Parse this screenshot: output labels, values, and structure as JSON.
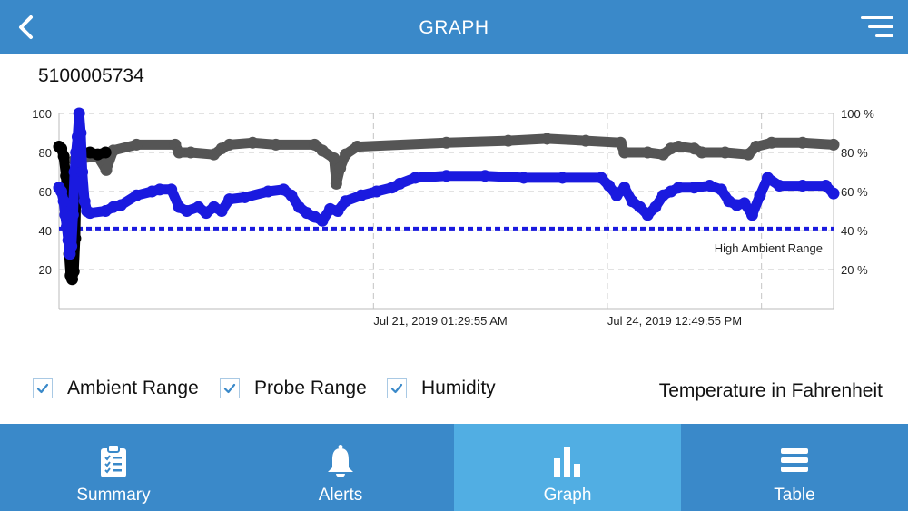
{
  "header": {
    "title": "GRAPH",
    "back_icon": "chevron-left-icon",
    "menu_icon": "menu-icon"
  },
  "device": {
    "id": "5100005734"
  },
  "chart_data": {
    "type": "line",
    "ylim": [
      0,
      100
    ],
    "y_ticks_left": [
      "100",
      "80",
      "60",
      "40",
      "20"
    ],
    "y_ticks_right": [
      "100 %",
      "80 %",
      "60 %",
      "40 %",
      "20 %"
    ],
    "x_ticks": [
      "Jul 21, 2019 01:29:55 AM",
      "Jul 24, 2019 12:49:55 PM"
    ],
    "grid": "dashed",
    "threshold": {
      "label": "High Ambient Range",
      "value": 41,
      "color": "#1a1adf"
    },
    "series": [
      {
        "color": "#000000",
        "points": [
          [
            0.0,
            83
          ],
          [
            0.3,
            82
          ],
          [
            0.6,
            78
          ],
          [
            0.9,
            68
          ],
          [
            1.1,
            45
          ],
          [
            1.3,
            28
          ],
          [
            1.5,
            17
          ],
          [
            1.7,
            15
          ],
          [
            1.9,
            19
          ],
          [
            2.1,
            36
          ],
          [
            2.2,
            60
          ],
          [
            2.4,
            70
          ],
          [
            2.6,
            79
          ],
          [
            3.0,
            80
          ],
          [
            4.0,
            80
          ],
          [
            5.0,
            79
          ],
          [
            6.0,
            80
          ]
        ]
      },
      {
        "color": "#555555",
        "points": [
          [
            2.0,
            76
          ],
          [
            3.0,
            77
          ],
          [
            5.0,
            78
          ],
          [
            6.1,
            71
          ],
          [
            7.0,
            81
          ],
          [
            10.0,
            84
          ],
          [
            15.0,
            84
          ],
          [
            15.5,
            80
          ],
          [
            17.0,
            80
          ],
          [
            20.0,
            79
          ],
          [
            21.0,
            82
          ],
          [
            22.0,
            84
          ],
          [
            25.0,
            85
          ],
          [
            28.0,
            84
          ],
          [
            33.0,
            84
          ],
          [
            34.0,
            81
          ],
          [
            35.5,
            77
          ],
          [
            35.8,
            64
          ],
          [
            36.3,
            72
          ],
          [
            37.0,
            79
          ],
          [
            38.5,
            83
          ],
          [
            50.0,
            85
          ],
          [
            58.0,
            86
          ],
          [
            63.0,
            87
          ],
          [
            68.0,
            86
          ],
          [
            72.5,
            85
          ],
          [
            73.0,
            80
          ],
          [
            76.0,
            80
          ],
          [
            78.0,
            79
          ],
          [
            79.0,
            82
          ],
          [
            80.0,
            83
          ],
          [
            82.0,
            82
          ],
          [
            83.0,
            80
          ],
          [
            86.0,
            80
          ],
          [
            89.0,
            79
          ],
          [
            90.0,
            83
          ],
          [
            92.0,
            85
          ],
          [
            96.0,
            85
          ],
          [
            100.0,
            84
          ]
        ]
      },
      {
        "color": "#1a1adf",
        "points": [
          [
            0.0,
            62
          ],
          [
            0.3,
            60
          ],
          [
            0.6,
            55
          ],
          [
            0.8,
            48
          ],
          [
            1.0,
            42
          ],
          [
            1.2,
            35
          ],
          [
            1.4,
            28
          ],
          [
            1.6,
            32
          ],
          [
            1.8,
            48
          ],
          [
            2.0,
            70
          ],
          [
            2.2,
            80
          ],
          [
            2.4,
            88
          ],
          [
            2.6,
            100
          ],
          [
            2.8,
            90
          ],
          [
            3.0,
            70
          ],
          [
            3.3,
            55
          ],
          [
            3.6,
            50
          ],
          [
            4.0,
            49
          ],
          [
            6.0,
            50
          ],
          [
            7.0,
            52
          ],
          [
            8.0,
            53
          ],
          [
            10.0,
            58
          ],
          [
            12.0,
            60
          ],
          [
            13.0,
            61
          ],
          [
            14.5,
            61
          ],
          [
            15.5,
            52
          ],
          [
            16.5,
            50
          ],
          [
            18.0,
            52
          ],
          [
            19.0,
            49
          ],
          [
            20.0,
            52
          ],
          [
            21.0,
            50
          ],
          [
            22.0,
            56
          ],
          [
            24.0,
            57
          ],
          [
            27.0,
            60
          ],
          [
            29.0,
            61
          ],
          [
            30.0,
            58
          ],
          [
            31.0,
            52
          ],
          [
            32.0,
            49
          ],
          [
            33.0,
            47
          ],
          [
            34.0,
            45
          ],
          [
            35.0,
            51
          ],
          [
            36.0,
            50
          ],
          [
            37.0,
            55
          ],
          [
            39.0,
            58
          ],
          [
            41.0,
            60
          ],
          [
            43.0,
            62
          ],
          [
            44.0,
            64
          ],
          [
            46.0,
            67
          ],
          [
            50.0,
            68
          ],
          [
            55.0,
            68
          ],
          [
            60.0,
            67
          ],
          [
            65.0,
            67
          ],
          [
            70.0,
            67
          ],
          [
            71.0,
            63
          ],
          [
            72.0,
            58
          ],
          [
            73.0,
            62
          ],
          [
            74.0,
            55
          ],
          [
            75.0,
            52
          ],
          [
            76.0,
            48
          ],
          [
            77.0,
            52
          ],
          [
            78.0,
            58
          ],
          [
            79.0,
            60
          ],
          [
            80.0,
            62
          ],
          [
            82.0,
            62
          ],
          [
            84.0,
            63
          ],
          [
            85.5,
            61
          ],
          [
            86.5,
            55
          ],
          [
            87.5,
            53
          ],
          [
            88.5,
            54
          ],
          [
            89.5,
            48
          ],
          [
            90.5,
            58
          ],
          [
            91.5,
            67
          ],
          [
            93.0,
            63
          ],
          [
            96.0,
            63
          ],
          [
            99.0,
            63
          ],
          [
            100.0,
            59
          ]
        ]
      }
    ]
  },
  "legend": {
    "ambient_label": "Ambient Range",
    "probe_label": "Probe Range",
    "humidity_label": "Humidity",
    "check_icon": "check-icon"
  },
  "temperature_unit": "Temperature in Fahrenheit",
  "tabs": [
    {
      "label": "Summary",
      "icon": "clipboard-checklist-icon"
    },
    {
      "label": "Alerts",
      "icon": "bell-icon"
    },
    {
      "label": "Graph",
      "icon": "bar-chart-icon"
    },
    {
      "label": "Table",
      "icon": "list-icon"
    }
  ],
  "colors": {
    "bar": "#3a89c9",
    "active_tab": "#51aee3",
    "ambient_series": "#000000",
    "probe_series": "#555555",
    "humidity_series": "#1a1adf"
  }
}
